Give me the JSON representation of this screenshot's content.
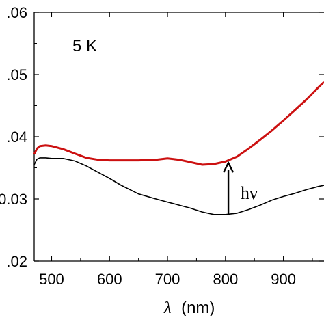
{
  "chart_data": {
    "type": "line",
    "title": "",
    "xlabel_symbol": "λ",
    "xlabel_unit": "(nm)",
    "ylabel": "",
    "xlim": [
      470,
      970
    ],
    "ylim": [
      0.02,
      0.06
    ],
    "x_ticks": [
      500,
      600,
      700,
      800,
      900
    ],
    "x_tick_labels": [
      "500",
      "600",
      "700",
      "800",
      "900"
    ],
    "y_ticks": [
      0.02,
      0.03,
      0.04,
      0.05,
      0.06
    ],
    "y_tick_labels": [
      ".02",
      "0.03",
      ".04",
      ".05",
      ".06"
    ],
    "grid": false,
    "annotations": {
      "temperature": "5 K",
      "arrow_label": "hν",
      "arrow_x": 805,
      "arrow_from": 0.0275,
      "arrow_to": 0.0358
    },
    "series": [
      {
        "color": "#cc1111",
        "x": [
          470,
          475,
          480,
          490,
          500,
          520,
          540,
          560,
          580,
          600,
          620,
          650,
          680,
          700,
          720,
          740,
          760,
          780,
          800,
          820,
          840,
          860,
          880,
          900,
          920,
          940,
          960,
          970
        ],
        "y": [
          0.0372,
          0.0381,
          0.0385,
          0.0386,
          0.0385,
          0.038,
          0.0373,
          0.0366,
          0.0363,
          0.0362,
          0.0362,
          0.0362,
          0.0363,
          0.0365,
          0.0363,
          0.0359,
          0.0355,
          0.0356,
          0.036,
          0.0368,
          0.0381,
          0.0395,
          0.041,
          0.0426,
          0.0443,
          0.046,
          0.0479,
          0.0488
        ]
      },
      {
        "color": "#000000",
        "x": [
          470,
          475,
          480,
          490,
          500,
          520,
          540,
          560,
          580,
          600,
          620,
          650,
          680,
          700,
          720,
          740,
          760,
          780,
          800,
          820,
          840,
          860,
          880,
          900,
          920,
          940,
          960,
          970
        ],
        "y": [
          0.0355,
          0.0364,
          0.0366,
          0.0366,
          0.0365,
          0.0365,
          0.0361,
          0.0353,
          0.0343,
          0.0333,
          0.0322,
          0.0308,
          0.03,
          0.0295,
          0.029,
          0.0285,
          0.0279,
          0.0275,
          0.0275,
          0.0277,
          0.0283,
          0.029,
          0.0298,
          0.0304,
          0.0309,
          0.0315,
          0.032,
          0.0322
        ]
      }
    ]
  }
}
